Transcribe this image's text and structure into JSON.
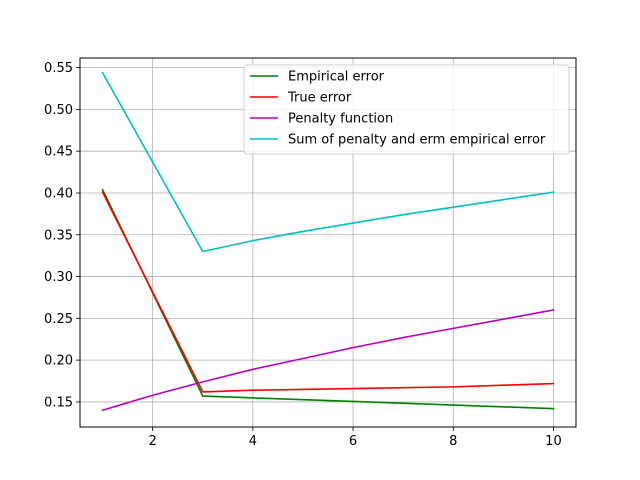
{
  "chart_data": {
    "type": "line",
    "title": "",
    "xlabel": "",
    "ylabel": "",
    "xlim": [
      0.55,
      10.45
    ],
    "ylim": [
      0.12,
      0.5615
    ],
    "grid": true,
    "legend_position": "top-right",
    "x_ticks": [
      2,
      4,
      6,
      8,
      10
    ],
    "y_ticks": [
      0.15,
      0.2,
      0.25,
      0.3,
      0.35,
      0.4,
      0.45,
      0.5,
      0.55
    ],
    "x_tick_labels": [
      "2",
      "4",
      "6",
      "8",
      "10"
    ],
    "y_tick_labels": [
      "0.15",
      "0.20",
      "0.25",
      "0.30",
      "0.35",
      "0.40",
      "0.45",
      "0.50",
      "0.55"
    ],
    "series": [
      {
        "name": "Empirical error",
        "color": "#008000",
        "x": [
          1,
          3,
          10
        ],
        "y": [
          0.404,
          0.157,
          0.142
        ]
      },
      {
        "name": "True error",
        "color": "#ff0000",
        "x": [
          1,
          3,
          4,
          5,
          6,
          7,
          8,
          9,
          10
        ],
        "y": [
          0.401,
          0.162,
          0.164,
          0.165,
          0.166,
          0.167,
          0.168,
          0.17,
          0.172
        ]
      },
      {
        "name": "Penalty function",
        "color": "#bf00bf",
        "x": [
          1,
          2,
          3,
          4,
          5,
          6,
          7,
          8,
          9,
          10
        ],
        "y": [
          0.14,
          0.158,
          0.174,
          0.189,
          0.202,
          0.215,
          0.227,
          0.238,
          0.249,
          0.26
        ]
      },
      {
        "name": "Sum of penalty and erm empirical error",
        "color": "#00bfbf",
        "x": [
          1,
          3,
          4,
          5,
          6,
          7,
          8,
          9,
          10
        ],
        "y": [
          0.544,
          0.33,
          0.343,
          0.354,
          0.364,
          0.374,
          0.383,
          0.392,
          0.401
        ]
      }
    ]
  }
}
